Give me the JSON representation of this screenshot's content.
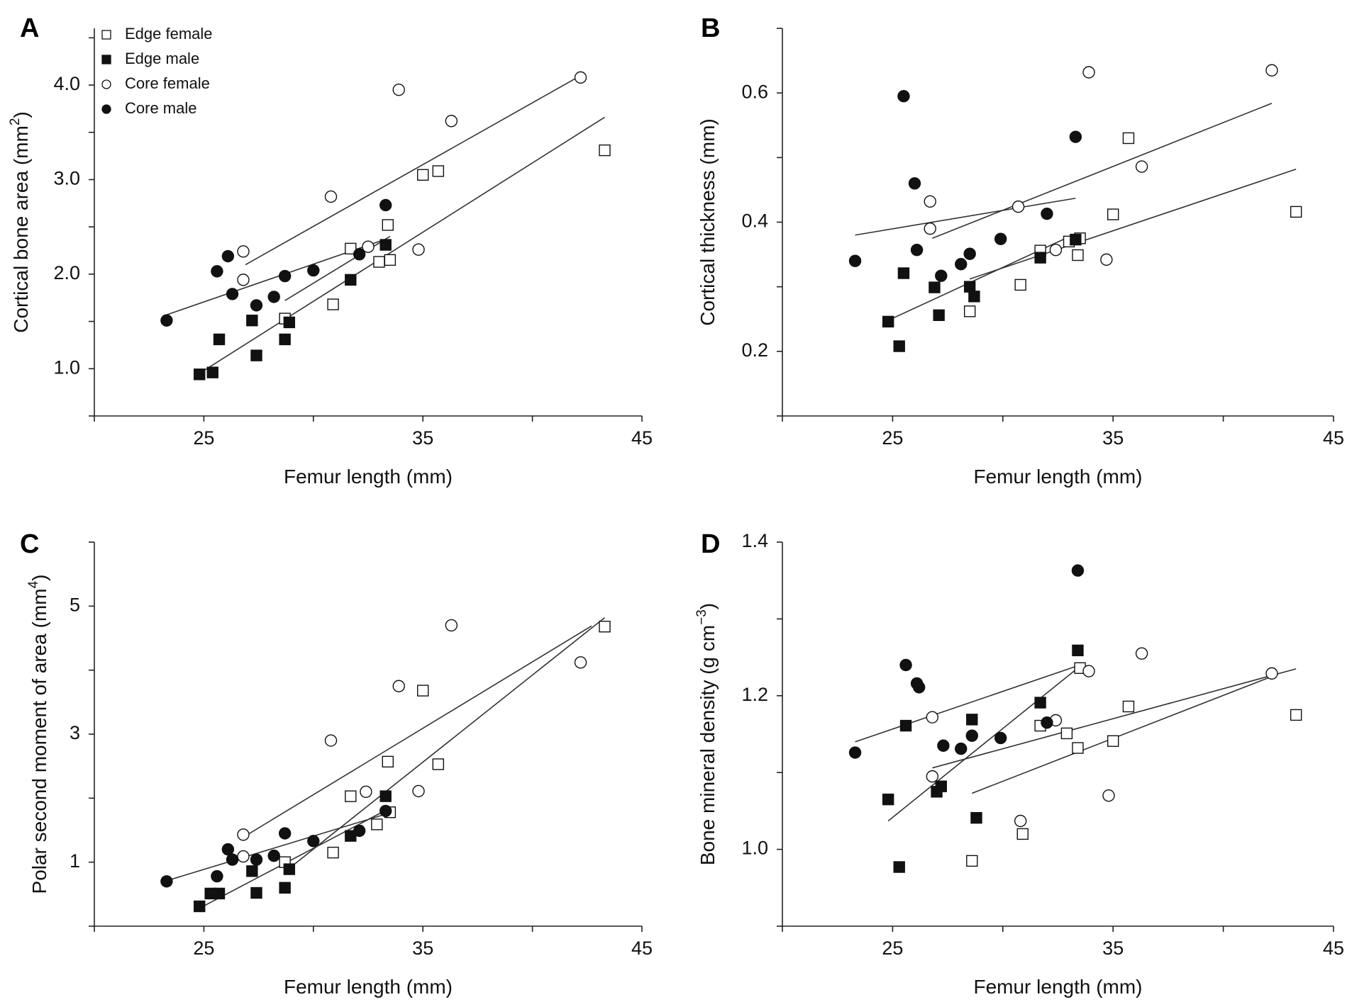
{
  "colors": {
    "ink": "#111111",
    "line": "#333333",
    "open_fill": "#ffffff"
  },
  "legend": {
    "entries": [
      {
        "label": "Edge female",
        "marker": "open-square"
      },
      {
        "label": "Edge male",
        "marker": "filled-square"
      },
      {
        "label": "Core female",
        "marker": "open-circle"
      },
      {
        "label": "Core male",
        "marker": "filled-circle"
      }
    ]
  },
  "chart_data": [
    {
      "panel": "A",
      "type": "scatter",
      "xlabel": "Femur length (mm)",
      "ylabel_main": "Cortical bone area (mm",
      "ylabel_sup": "2",
      "ylabel_tail": ")",
      "xlim": [
        20,
        45
      ],
      "ylim": [
        0.5,
        4.6
      ],
      "xticks": [
        25,
        35,
        45
      ],
      "yticks": [
        1.0,
        2.0,
        3.0,
        4.0
      ],
      "yticklabels": [
        "1.0",
        "2.0",
        "3.0",
        "4.0"
      ],
      "series": [
        {
          "name": "Edge female",
          "marker": "open-square",
          "points": [
            [
              28.7,
              1.53
            ],
            [
              30.9,
              1.68
            ],
            [
              31.7,
              2.27
            ],
            [
              33.0,
              2.13
            ],
            [
              33.4,
              2.52
            ],
            [
              33.5,
              2.15
            ],
            [
              35.0,
              3.05
            ],
            [
              35.7,
              3.09
            ],
            [
              43.3,
              3.31
            ]
          ],
          "fit": [
            [
              28.7,
              1.72
            ],
            [
              33.5,
              2.4
            ]
          ]
        },
        {
          "name": "Edge male",
          "marker": "filled-square",
          "points": [
            [
              24.8,
              0.94
            ],
            [
              25.4,
              0.96
            ],
            [
              25.7,
              1.31
            ],
            [
              27.2,
              1.51
            ],
            [
              27.4,
              1.14
            ],
            [
              28.7,
              1.31
            ],
            [
              28.9,
              1.49
            ],
            [
              31.7,
              1.94
            ],
            [
              33.3,
              2.31
            ]
          ],
          "fit": [
            [
              25.0,
              0.98
            ],
            [
              43.3,
              3.66
            ]
          ]
        },
        {
          "name": "Core female",
          "marker": "open-circle",
          "points": [
            [
              26.8,
              2.24
            ],
            [
              26.8,
              1.94
            ],
            [
              30.8,
              2.82
            ],
            [
              32.5,
              2.29
            ],
            [
              33.9,
              3.95
            ],
            [
              34.8,
              2.26
            ],
            [
              36.3,
              3.62
            ],
            [
              42.2,
              4.08
            ]
          ],
          "fit": [
            [
              26.9,
              2.1
            ],
            [
              42.2,
              4.1
            ]
          ]
        },
        {
          "name": "Core male",
          "marker": "filled-circle",
          "points": [
            [
              23.3,
              1.51
            ],
            [
              25.6,
              2.03
            ],
            [
              26.1,
              2.19
            ],
            [
              26.3,
              1.79
            ],
            [
              27.4,
              1.67
            ],
            [
              28.2,
              1.76
            ],
            [
              28.7,
              1.98
            ],
            [
              30.0,
              2.04
            ],
            [
              32.1,
              2.21
            ],
            [
              33.3,
              2.73
            ]
          ],
          "fit": [
            [
              23.3,
              1.57
            ],
            [
              33.3,
              2.37
            ]
          ]
        }
      ]
    },
    {
      "panel": "B",
      "type": "scatter",
      "xlabel": "Femur length (mm)",
      "ylabel_main": "Cortical thickness (mm)",
      "ylabel_sup": "",
      "ylabel_tail": "",
      "xlim": [
        20,
        45
      ],
      "ylim": [
        0.1,
        0.7
      ],
      "xticks": [
        25,
        35,
        45
      ],
      "yticks": [
        0.2,
        0.4,
        0.6
      ],
      "yticklabels": [
        "0.2",
        "0.4",
        "0.6"
      ],
      "series": [
        {
          "name": "Edge female",
          "marker": "open-square",
          "points": [
            [
              28.5,
              0.262
            ],
            [
              30.8,
              0.303
            ],
            [
              31.7,
              0.356
            ],
            [
              33.0,
              0.37
            ],
            [
              33.4,
              0.349
            ],
            [
              33.5,
              0.375
            ],
            [
              35.0,
              0.412
            ],
            [
              35.7,
              0.53
            ],
            [
              43.3,
              0.416
            ]
          ],
          "fit": [
            [
              28.5,
              0.312
            ],
            [
              43.3,
              0.482
            ]
          ]
        },
        {
          "name": "Edge male",
          "marker": "filled-square",
          "points": [
            [
              24.8,
              0.246
            ],
            [
              25.3,
              0.208
            ],
            [
              25.5,
              0.321
            ],
            [
              26.9,
              0.299
            ],
            [
              27.1,
              0.256
            ],
            [
              28.5,
              0.3
            ],
            [
              28.7,
              0.285
            ],
            [
              31.7,
              0.345
            ],
            [
              33.3,
              0.373
            ]
          ],
          "fit": [
            [
              24.8,
              0.248
            ],
            [
              33.3,
              0.382
            ]
          ]
        },
        {
          "name": "Core female",
          "marker": "open-circle",
          "points": [
            [
              26.7,
              0.432
            ],
            [
              26.7,
              0.39
            ],
            [
              30.7,
              0.424
            ],
            [
              32.4,
              0.357
            ],
            [
              33.9,
              0.632
            ],
            [
              34.7,
              0.342
            ],
            [
              36.3,
              0.486
            ],
            [
              42.2,
              0.635
            ]
          ],
          "fit": [
            [
              26.8,
              0.375
            ],
            [
              42.2,
              0.584
            ]
          ]
        },
        {
          "name": "Core male",
          "marker": "filled-circle",
          "points": [
            [
              23.3,
              0.34
            ],
            [
              25.5,
              0.595
            ],
            [
              26.0,
              0.46
            ],
            [
              26.1,
              0.357
            ],
            [
              27.2,
              0.317
            ],
            [
              28.1,
              0.335
            ],
            [
              28.5,
              0.351
            ],
            [
              29.9,
              0.374
            ],
            [
              32.0,
              0.413
            ],
            [
              33.3,
              0.532
            ]
          ],
          "fit": [
            [
              23.3,
              0.38
            ],
            [
              33.3,
              0.437
            ]
          ]
        }
      ]
    },
    {
      "panel": "C",
      "type": "scatter",
      "xlabel": "Femur length (mm)",
      "ylabel_main": "Polar second moment of area (mm",
      "ylabel_sup": "4",
      "ylabel_tail": ")",
      "xlim": [
        20,
        45
      ],
      "ylim": [
        0,
        6
      ],
      "xticks": [
        25,
        35,
        45
      ],
      "yticks": [
        1,
        3,
        5
      ],
      "yticklabels": [
        "1",
        "3",
        "5"
      ],
      "series": [
        {
          "name": "Edge female",
          "marker": "open-square",
          "points": [
            [
              28.7,
              1.0
            ],
            [
              30.9,
              1.15
            ],
            [
              31.7,
              2.03
            ],
            [
              32.9,
              1.59
            ],
            [
              33.4,
              2.57
            ],
            [
              33.5,
              1.78
            ],
            [
              35.0,
              3.68
            ],
            [
              35.7,
              2.53
            ],
            [
              43.3,
              4.68
            ]
          ],
          "fit": [
            [
              28.7,
              0.85
            ],
            [
              43.3,
              4.82
            ]
          ]
        },
        {
          "name": "Edge male",
          "marker": "filled-square",
          "points": [
            [
              24.8,
              0.31
            ],
            [
              25.3,
              0.51
            ],
            [
              25.7,
              0.51
            ],
            [
              27.2,
              0.86
            ],
            [
              27.4,
              0.52
            ],
            [
              28.7,
              0.6
            ],
            [
              28.9,
              0.89
            ],
            [
              31.7,
              1.41
            ],
            [
              33.3,
              2.03
            ]
          ],
          "fit": [
            [
              24.8,
              0.28
            ],
            [
              33.3,
              1.81
            ]
          ]
        },
        {
          "name": "Core female",
          "marker": "open-circle",
          "points": [
            [
              26.8,
              1.43
            ],
            [
              26.8,
              1.09
            ],
            [
              30.8,
              2.9
            ],
            [
              32.4,
              2.1
            ],
            [
              33.9,
              3.75
            ],
            [
              34.8,
              2.11
            ],
            [
              36.3,
              4.7
            ],
            [
              42.2,
              4.12
            ]
          ],
          "fit": [
            [
              26.8,
              1.39
            ],
            [
              42.7,
              4.69
            ]
          ]
        },
        {
          "name": "Core male",
          "marker": "filled-circle",
          "points": [
            [
              23.3,
              0.7
            ],
            [
              25.6,
              0.78
            ],
            [
              26.1,
              1.2
            ],
            [
              26.3,
              1.04
            ],
            [
              27.4,
              1.04
            ],
            [
              28.2,
              1.1
            ],
            [
              28.7,
              1.45
            ],
            [
              30.0,
              1.33
            ],
            [
              32.1,
              1.49
            ],
            [
              33.3,
              1.8
            ]
          ],
          "fit": [
            [
              23.3,
              0.71
            ],
            [
              33.3,
              1.75
            ]
          ]
        }
      ]
    },
    {
      "panel": "D",
      "type": "scatter",
      "xlabel": "Femur length (mm)",
      "ylabel_main": "Bone mineral density (g cm",
      "ylabel_sup": "−3",
      "ylabel_tail": ")",
      "xlim": [
        20,
        45
      ],
      "ylim": [
        0.9,
        1.4
      ],
      "xticks": [
        25,
        35,
        45
      ],
      "yticks": [
        1.0,
        1.2,
        1.4
      ],
      "yticklabels": [
        "1.0",
        "1.2",
        "1.4"
      ],
      "series": [
        {
          "name": "Edge female",
          "marker": "open-square",
          "points": [
            [
              28.6,
              0.985
            ],
            [
              30.9,
              1.02
            ],
            [
              31.7,
              1.161
            ],
            [
              32.9,
              1.151
            ],
            [
              33.4,
              1.132
            ],
            [
              33.5,
              1.236
            ],
            [
              35.0,
              1.141
            ],
            [
              35.7,
              1.186
            ],
            [
              43.3,
              1.175
            ]
          ],
          "fit": [
            [
              28.6,
              1.073
            ],
            [
              42.2,
              1.225
            ]
          ]
        },
        {
          "name": "Edge male",
          "marker": "filled-square",
          "points": [
            [
              24.8,
              1.065
            ],
            [
              25.3,
              0.977
            ],
            [
              25.6,
              1.161
            ],
            [
              27.0,
              1.075
            ],
            [
              27.2,
              1.082
            ],
            [
              28.6,
              1.169
            ],
            [
              28.8,
              1.041
            ],
            [
              31.7,
              1.191
            ],
            [
              33.4,
              1.259
            ]
          ],
          "fit": [
            [
              24.8,
              1.037
            ],
            [
              33.4,
              1.236
            ]
          ]
        },
        {
          "name": "Core female",
          "marker": "open-circle",
          "points": [
            [
              26.8,
              1.172
            ],
            [
              26.8,
              1.095
            ],
            [
              30.8,
              1.037
            ],
            [
              32.4,
              1.168
            ],
            [
              33.9,
              1.232
            ],
            [
              34.8,
              1.07
            ],
            [
              36.3,
              1.255
            ],
            [
              42.2,
              1.229
            ]
          ],
          "fit": [
            [
              26.8,
              1.106
            ],
            [
              43.3,
              1.235
            ]
          ]
        },
        {
          "name": "Core male",
          "marker": "filled-circle",
          "points": [
            [
              23.3,
              1.126
            ],
            [
              25.6,
              1.24
            ],
            [
              26.1,
              1.216
            ],
            [
              26.2,
              1.211
            ],
            [
              27.3,
              1.135
            ],
            [
              28.1,
              1.131
            ],
            [
              28.6,
              1.148
            ],
            [
              29.9,
              1.145
            ],
            [
              32.0,
              1.165
            ],
            [
              33.4,
              1.363
            ]
          ],
          "fit": [
            [
              23.3,
              1.14
            ],
            [
              33.4,
              1.239
            ]
          ]
        }
      ]
    }
  ]
}
